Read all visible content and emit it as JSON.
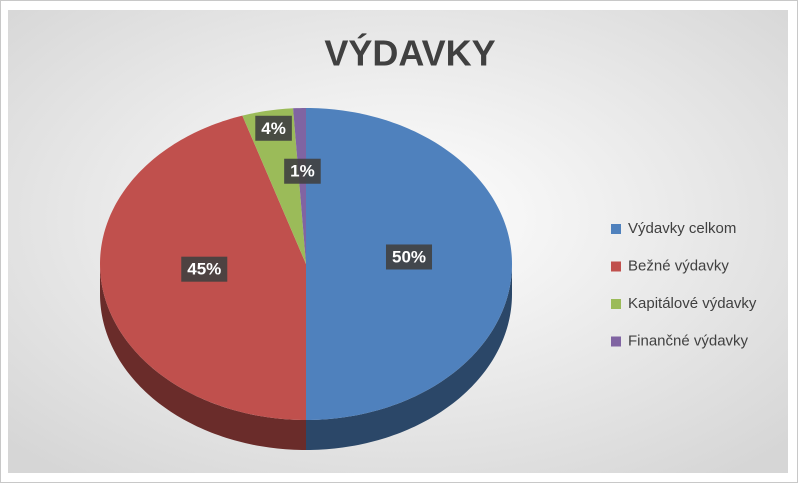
{
  "chart_data": {
    "type": "pie",
    "title": "VÝDAVKY",
    "categories": [
      "Výdavky celkom",
      "Bežné výdavky",
      "Kapitálové výdavky",
      "Finančné výdavky"
    ],
    "values": [
      50,
      45,
      4,
      1
    ],
    "value_labels": [
      "50%",
      "45%",
      "4%",
      "1%"
    ],
    "colors": [
      "#4f81bd",
      "#c0504d",
      "#9bbb59",
      "#8064a2"
    ],
    "legend": "right"
  }
}
